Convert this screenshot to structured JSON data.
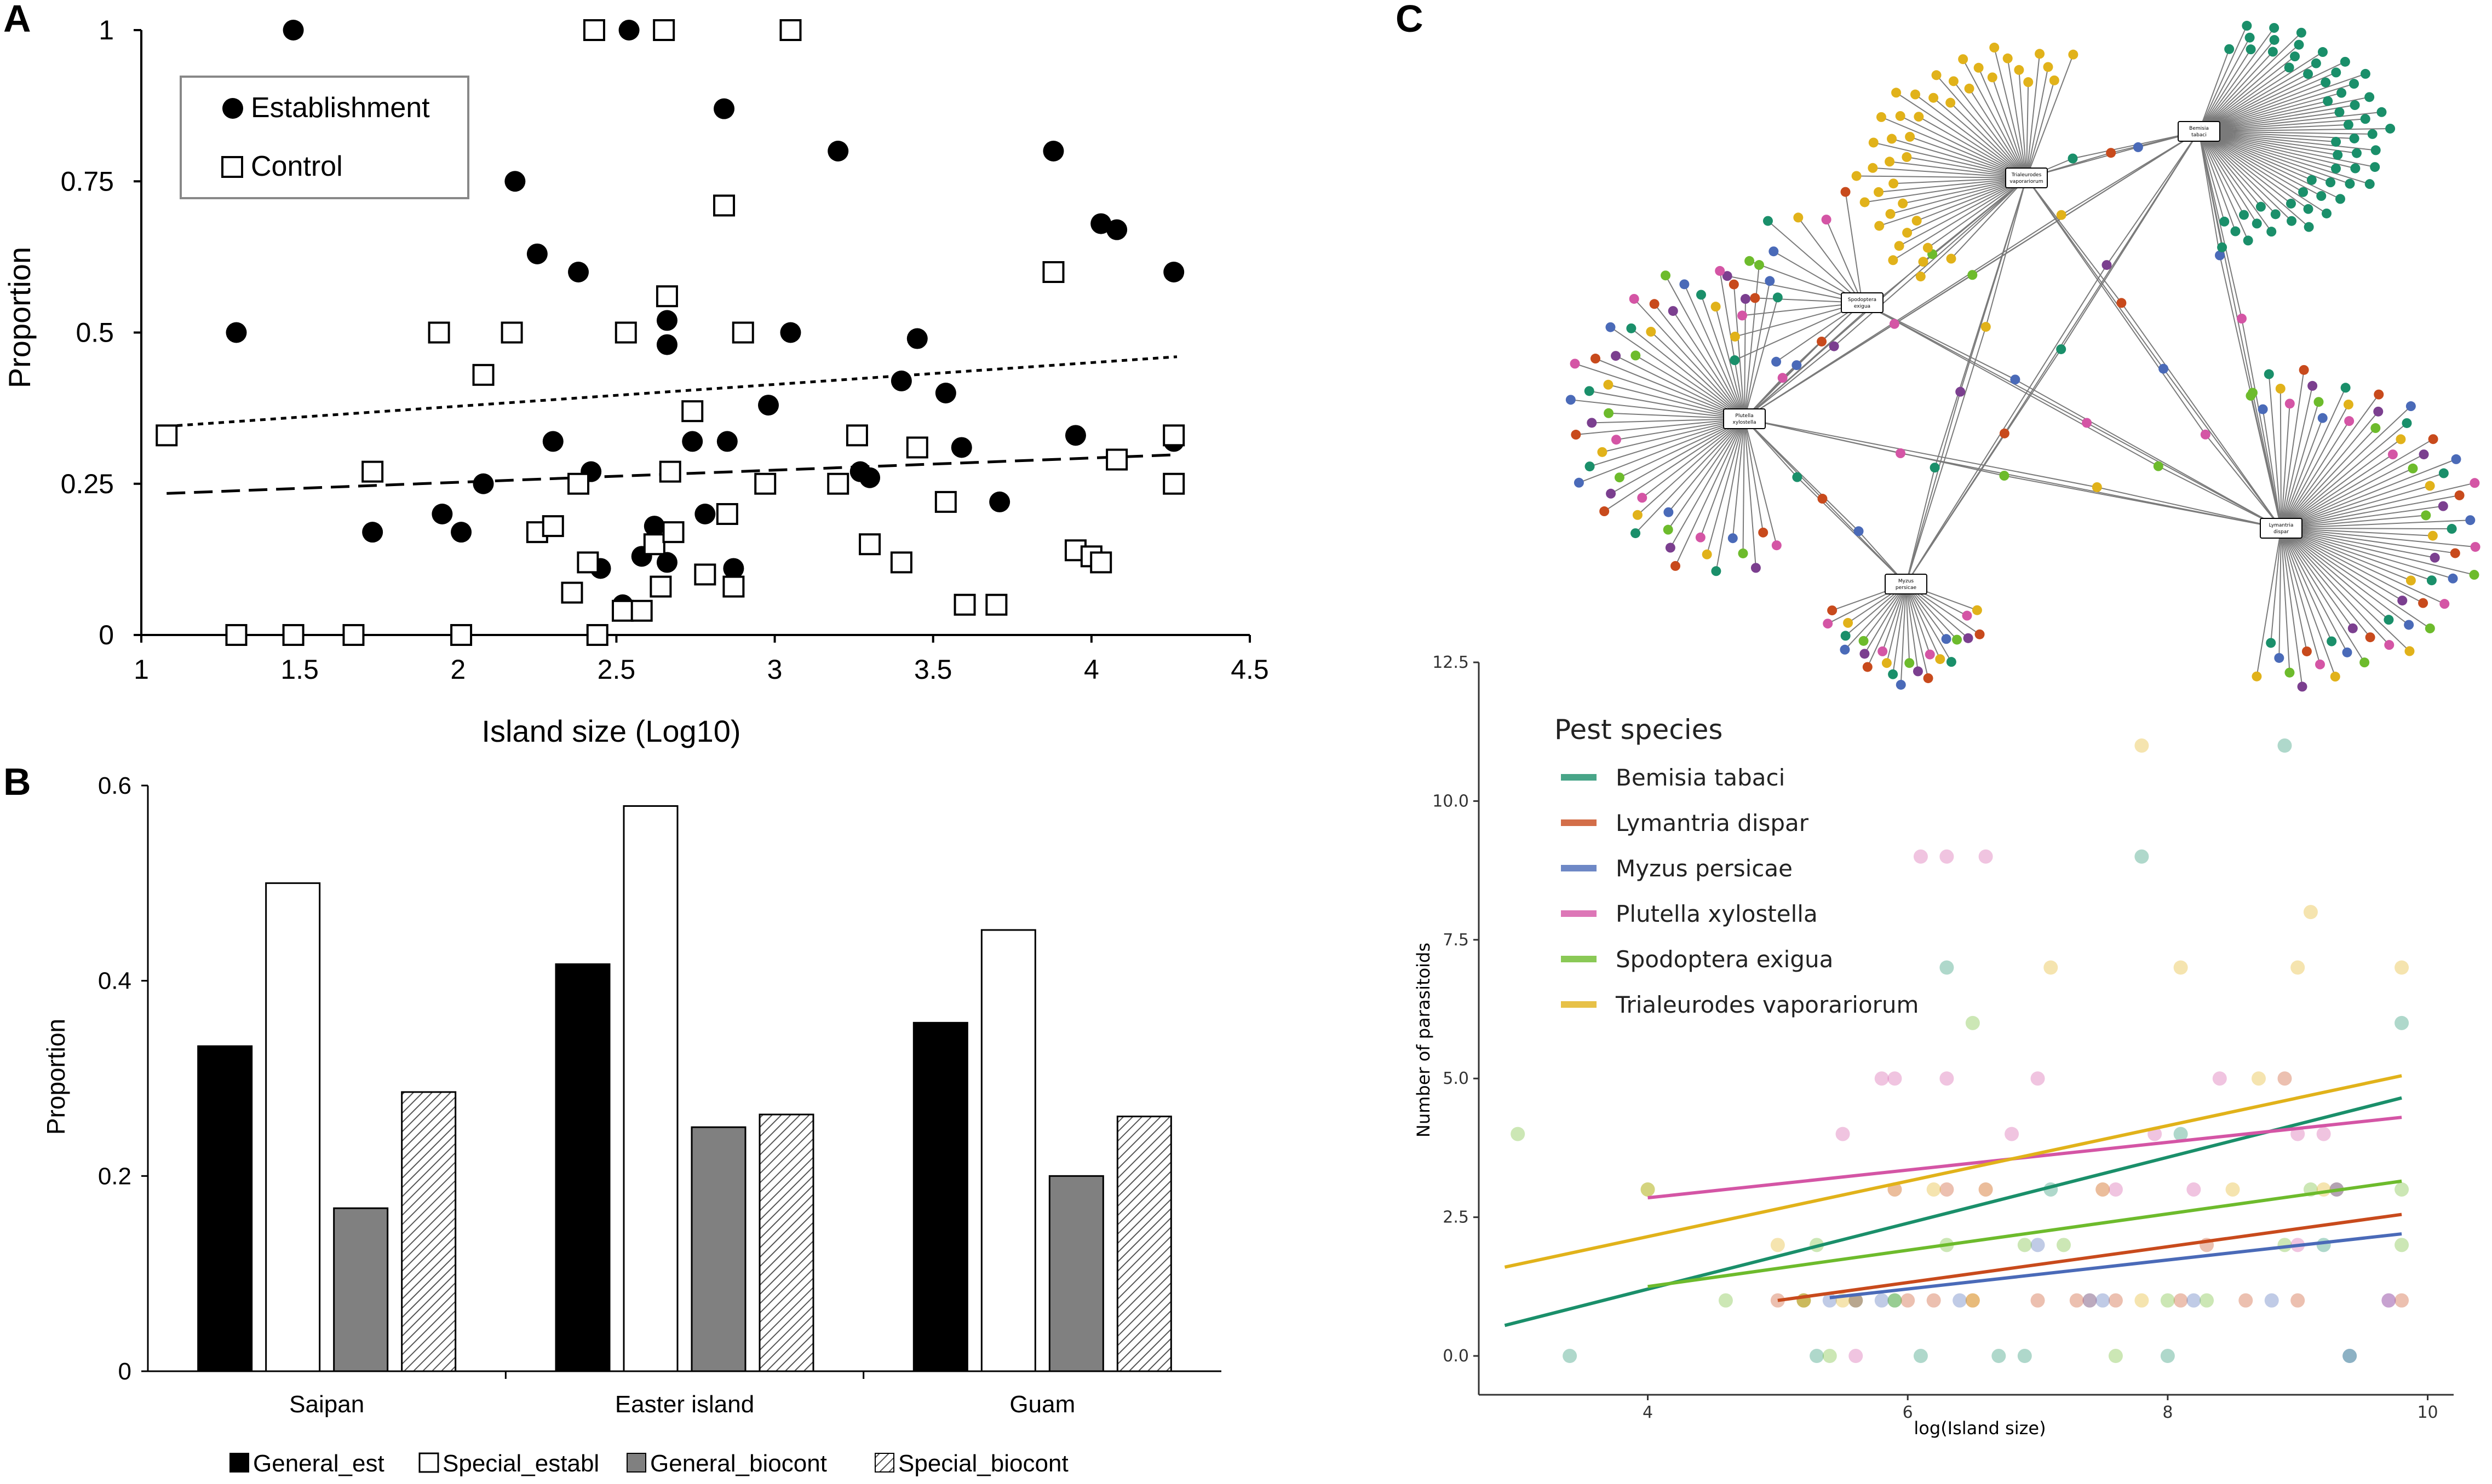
{
  "panels": {
    "a": "A",
    "b": "B",
    "c": "C"
  },
  "chart_data": [
    {
      "id": "A",
      "type": "scatter",
      "title": "",
      "xlabel": "Island size (Log10)",
      "ylabel": "Proportion",
      "xlim": [
        1,
        4.5
      ],
      "ylim": [
        0,
        1
      ],
      "xticks": [
        "1",
        "1.5",
        "2",
        "2.5",
        "3",
        "3.5",
        "4",
        "4.5"
      ],
      "yticks": [
        "0",
        "0.25",
        "0.5",
        "0.75",
        "1"
      ],
      "legend": [
        "Establishment",
        "Control"
      ],
      "series": [
        {
          "name": "Establishment",
          "marker": "filled-circle",
          "points": [
            [
              1.3,
              0.5
            ],
            [
              1.48,
              1.0
            ],
            [
              1.73,
              0.17
            ],
            [
              1.95,
              0.2
            ],
            [
              2.01,
              0.17
            ],
            [
              2.08,
              0.25
            ],
            [
              2.18,
              0.75
            ],
            [
              2.25,
              0.63
            ],
            [
              2.3,
              0.32
            ],
            [
              2.38,
              0.6
            ],
            [
              2.42,
              0.27
            ],
            [
              2.45,
              0.11
            ],
            [
              2.52,
              0.05
            ],
            [
              2.54,
              1.0
            ],
            [
              2.58,
              0.13
            ],
            [
              2.62,
              0.18
            ],
            [
              2.66,
              0.12
            ],
            [
              2.66,
              0.48
            ],
            [
              2.66,
              0.52
            ],
            [
              2.74,
              0.32
            ],
            [
              2.78,
              0.2
            ],
            [
              2.84,
              0.87
            ],
            [
              2.85,
              0.32
            ],
            [
              2.87,
              0.11
            ],
            [
              2.98,
              0.38
            ],
            [
              3.05,
              0.5
            ],
            [
              3.2,
              0.8
            ],
            [
              3.27,
              0.27
            ],
            [
              3.3,
              0.26
            ],
            [
              3.4,
              0.42
            ],
            [
              3.45,
              0.49
            ],
            [
              3.54,
              0.4
            ],
            [
              3.59,
              0.31
            ],
            [
              3.71,
              0.22
            ],
            [
              3.88,
              0.8
            ],
            [
              3.95,
              0.33
            ],
            [
              4.0,
              0.13
            ],
            [
              4.03,
              0.68
            ],
            [
              4.08,
              0.67
            ],
            [
              4.26,
              0.6
            ],
            [
              4.26,
              0.32
            ]
          ],
          "trend": {
            "style": "dashed",
            "x": [
              1.08,
              4.27
            ],
            "y": [
              0.234,
              0.298
            ]
          }
        },
        {
          "name": "Control",
          "marker": "open-square",
          "points": [
            [
              1.08,
              0.33
            ],
            [
              1.3,
              0.0
            ],
            [
              1.48,
              0.0
            ],
            [
              1.67,
              0.0
            ],
            [
              1.73,
              0.27
            ],
            [
              1.94,
              0.5
            ],
            [
              2.01,
              0.0
            ],
            [
              2.08,
              0.43
            ],
            [
              2.17,
              0.5
            ],
            [
              2.25,
              0.17
            ],
            [
              2.3,
              0.18
            ],
            [
              2.36,
              0.07
            ],
            [
              2.38,
              0.25
            ],
            [
              2.41,
              0.12
            ],
            [
              2.43,
              1.0
            ],
            [
              2.44,
              0.0
            ],
            [
              2.52,
              0.04
            ],
            [
              2.53,
              0.5
            ],
            [
              2.58,
              0.04
            ],
            [
              2.62,
              0.15
            ],
            [
              2.64,
              0.08
            ],
            [
              2.65,
              1.0
            ],
            [
              2.66,
              0.56
            ],
            [
              2.67,
              0.27
            ],
            [
              2.68,
              0.17
            ],
            [
              2.74,
              0.37
            ],
            [
              2.78,
              0.1
            ],
            [
              2.84,
              0.71
            ],
            [
              2.85,
              0.2
            ],
            [
              2.87,
              0.08
            ],
            [
              2.9,
              0.5
            ],
            [
              2.97,
              0.25
            ],
            [
              3.05,
              1.0
            ],
            [
              3.2,
              0.25
            ],
            [
              3.26,
              0.33
            ],
            [
              3.3,
              0.15
            ],
            [
              3.4,
              0.12
            ],
            [
              3.45,
              0.31
            ],
            [
              3.54,
              0.22
            ],
            [
              3.6,
              0.05
            ],
            [
              3.7,
              0.05
            ],
            [
              3.88,
              0.6
            ],
            [
              3.95,
              0.14
            ],
            [
              4.0,
              0.13
            ],
            [
              4.03,
              0.12
            ],
            [
              4.08,
              0.29
            ],
            [
              4.26,
              0.33
            ],
            [
              4.26,
              0.25
            ]
          ],
          "trend": {
            "style": "dotted",
            "x": [
              1.08,
              4.27
            ],
            "y": [
              0.345,
              0.46
            ]
          }
        }
      ]
    },
    {
      "id": "B",
      "type": "bar",
      "title": "",
      "xlabel": "",
      "ylabel": "Proportion",
      "ylim": [
        0,
        0.6
      ],
      "yticks": [
        "0",
        "0.2",
        "0.4",
        "0.6"
      ],
      "categories": [
        "Saipan",
        "Easter island",
        "Guam"
      ],
      "series": [
        {
          "name": "General_est",
          "fill": "#000000",
          "values": [
            0.333,
            0.417,
            0.357
          ]
        },
        {
          "name": "Special_establ",
          "fill": "#ffffff",
          "values": [
            0.5,
            0.579,
            0.452
          ]
        },
        {
          "name": "General_biocont",
          "fill": "#808080",
          "values": [
            0.167,
            0.25,
            0.2
          ]
        },
        {
          "name": "Special_biocont",
          "fill": "hatched",
          "values": [
            0.286,
            0.263,
            0.261
          ]
        }
      ],
      "legend_position": "bottom"
    },
    {
      "id": "C-network",
      "type": "network",
      "hubs": [
        {
          "label": "Bemisia tabaci",
          "label_lines": [
            "Bemisia",
            "tabaci"
          ],
          "pest": "Bemisia tabaci",
          "degree": 58
        },
        {
          "label": "Trialeurodes vaporariorum",
          "label_lines": [
            "Trialeurodes",
            "vaporariorum"
          ],
          "pest": "Trialeurodes vaporariorum",
          "degree": 42
        },
        {
          "label": "Spodoptera exigua",
          "label_lines": [
            "Spodoptera",
            "exigua"
          ],
          "pest": "Spodoptera exigua",
          "degree": 12
        },
        {
          "label": "Plutella xylostella",
          "label_lines": [
            "Plutella",
            "xylostella"
          ],
          "pest": "Plutella xylostella",
          "degree": 48
        },
        {
          "label": "Lymantria dispar",
          "label_lines": [
            "Lymantria",
            "dispar"
          ],
          "pest": "Lymantria dispar",
          "degree": 60
        },
        {
          "label": "Myzus persicae",
          "label_lines": [
            "Myzus",
            "persicae"
          ],
          "pest": "Myzus persicae",
          "degree": 24
        }
      ]
    },
    {
      "id": "C-scatter",
      "type": "scatter",
      "title": "",
      "xlabel": "log(Island size)",
      "ylabel": "Number of parasitoids",
      "xlim": [
        2.7,
        10.2
      ],
      "ylim": [
        -0.7,
        12.5
      ],
      "xticks": [
        "4",
        "6",
        "8",
        "10"
      ],
      "yticks": [
        "0.0",
        "2.5",
        "5.0",
        "7.5",
        "10.0",
        "12.5"
      ],
      "legend_title": "Pest species",
      "series": [
        {
          "name": "Bemisia tabaci",
          "color": "#1a8f6a",
          "points": [
            [
              3.4,
              0
            ],
            [
              5.3,
              0
            ],
            [
              5.6,
              1
            ],
            [
              6.1,
              0
            ],
            [
              6.3,
              7
            ],
            [
              6.7,
              0
            ],
            [
              6.9,
              0
            ],
            [
              7.1,
              3
            ],
            [
              7.8,
              9
            ],
            [
              8.0,
              0
            ],
            [
              8.1,
              4
            ],
            [
              8.9,
              11
            ],
            [
              9.2,
              2
            ],
            [
              9.4,
              0
            ],
            [
              9.8,
              6
            ],
            [
              5.9,
              1
            ],
            [
              7.4,
              1
            ]
          ],
          "trend": {
            "x": [
              2.9,
              9.8
            ],
            "y": [
              0.55,
              4.65
            ]
          }
        },
        {
          "name": "Lymantria dispar",
          "color": "#c84a1c",
          "points": [
            [
              5.0,
              1
            ],
            [
              5.2,
              1
            ],
            [
              5.6,
              1
            ],
            [
              6.0,
              1
            ],
            [
              6.2,
              1
            ],
            [
              6.5,
              1
            ],
            [
              7.0,
              1
            ],
            [
              7.3,
              1
            ],
            [
              7.6,
              1
            ],
            [
              8.1,
              1
            ],
            [
              8.6,
              1
            ],
            [
              9.0,
              1
            ],
            [
              9.3,
              3
            ],
            [
              9.8,
              1
            ],
            [
              6.3,
              3
            ],
            [
              8.3,
              2
            ],
            [
              8.9,
              5
            ]
          ],
          "trend": {
            "x": [
              5.0,
              9.8
            ],
            "y": [
              1.0,
              2.55
            ]
          }
        },
        {
          "name": "Myzus persicae",
          "color": "#4a6ab8",
          "points": [
            [
              5.4,
              1
            ],
            [
              5.8,
              1
            ],
            [
              6.4,
              1
            ],
            [
              7.0,
              2
            ],
            [
              7.5,
              1
            ],
            [
              8.2,
              1
            ],
            [
              8.8,
              1
            ],
            [
              9.3,
              3
            ],
            [
              9.4,
              0
            ],
            [
              9.7,
              1
            ]
          ],
          "trend": {
            "x": [
              5.4,
              9.8
            ],
            "y": [
              1.05,
              2.2
            ]
          }
        },
        {
          "name": "Plutella xylostella",
          "color": "#d455a5",
          "points": [
            [
              5.5,
              4
            ],
            [
              5.8,
              5
            ],
            [
              5.9,
              5
            ],
            [
              6.1,
              9
            ],
            [
              6.3,
              9
            ],
            [
              6.6,
              9
            ],
            [
              6.3,
              5
            ],
            [
              6.8,
              4
            ],
            [
              7.0,
              5
            ],
            [
              7.4,
              1
            ],
            [
              7.6,
              3
            ],
            [
              7.9,
              4
            ],
            [
              8.4,
              5
            ],
            [
              9.0,
              4
            ],
            [
              9.2,
              4
            ],
            [
              9.7,
              1
            ],
            [
              5.9,
              3
            ],
            [
              6.6,
              3
            ],
            [
              7.5,
              3
            ],
            [
              8.2,
              3
            ],
            [
              9.0,
              2
            ],
            [
              5.6,
              0
            ]
          ],
          "trend": {
            "x": [
              4.0,
              9.8
            ],
            "y": [
              2.85,
              4.3
            ]
          }
        },
        {
          "name": "Spodoptera exigua",
          "color": "#6dbb2c",
          "points": [
            [
              3.0,
              4
            ],
            [
              4.0,
              3
            ],
            [
              4.6,
              1
            ],
            [
              5.2,
              1
            ],
            [
              5.4,
              0
            ],
            [
              5.9,
              1
            ],
            [
              6.3,
              2
            ],
            [
              6.5,
              6
            ],
            [
              6.9,
              2
            ],
            [
              7.6,
              0
            ],
            [
              8.0,
              1
            ],
            [
              8.3,
              1
            ],
            [
              8.9,
              2
            ],
            [
              9.1,
              3
            ],
            [
              9.8,
              3
            ],
            [
              9.8,
              2
            ],
            [
              5.3,
              2
            ],
            [
              7.2,
              2
            ]
          ],
          "trend": {
            "x": [
              4.0,
              9.8
            ],
            "y": [
              1.25,
              3.15
            ]
          }
        },
        {
          "name": "Trialeurodes vaporariorum",
          "color": "#e1b21a",
          "points": [
            [
              4.0,
              3
            ],
            [
              5.0,
              2
            ],
            [
              5.2,
              1
            ],
            [
              5.5,
              1
            ],
            [
              5.9,
              3
            ],
            [
              6.2,
              3
            ],
            [
              6.6,
              3
            ],
            [
              7.1,
              7
            ],
            [
              7.5,
              3
            ],
            [
              7.8,
              11
            ],
            [
              8.1,
              7
            ],
            [
              8.5,
              3
            ],
            [
              8.7,
              5
            ],
            [
              9.0,
              7
            ],
            [
              9.2,
              3
            ],
            [
              9.1,
              8
            ],
            [
              9.8,
              7
            ],
            [
              6.5,
              1
            ],
            [
              7.8,
              1
            ]
          ],
          "trend": {
            "x": [
              2.9,
              9.8
            ],
            "y": [
              1.6,
              5.05
            ]
          }
        }
      ]
    }
  ]
}
